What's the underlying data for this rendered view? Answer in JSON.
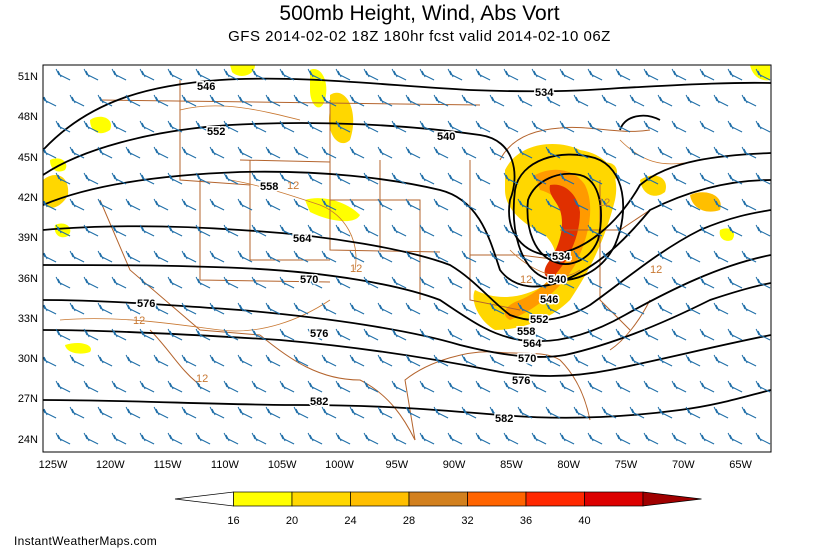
{
  "title": "500mb Height, Wind, Abs Vort",
  "subtitle": "GFS 2014-02-02 18Z 180hr fcst valid 2014-02-10 06Z",
  "credit": "InstantWeatherMaps.com",
  "lat_labels": [
    "51N",
    "48N",
    "45N",
    "42N",
    "39N",
    "36N",
    "33N",
    "30N",
    "27N",
    "24N"
  ],
  "lon_labels": [
    "125W",
    "120W",
    "115W",
    "110W",
    "105W",
    "100W",
    "95W",
    "90W",
    "85W",
    "80W",
    "75W",
    "70W",
    "65W"
  ],
  "height_contour_labels": [
    "534",
    "540",
    "546",
    "552",
    "558",
    "564",
    "570",
    "576",
    "582"
  ],
  "vort_labels": [
    "12"
  ],
  "colorbar": {
    "ticks": [
      "16",
      "20",
      "24",
      "28",
      "32",
      "36",
      "40"
    ],
    "colors": [
      "#ffffff",
      "#ffff00",
      "#ffd700",
      "#ffbf00",
      "#d2801e",
      "#ff6400",
      "#ff2800",
      "#dc0000",
      "#a00000"
    ]
  },
  "colors": {
    "contour": "#000000",
    "wind_barb": "#1f6ea8",
    "border": "#b4642d",
    "vort_contour": "#c87832"
  }
}
